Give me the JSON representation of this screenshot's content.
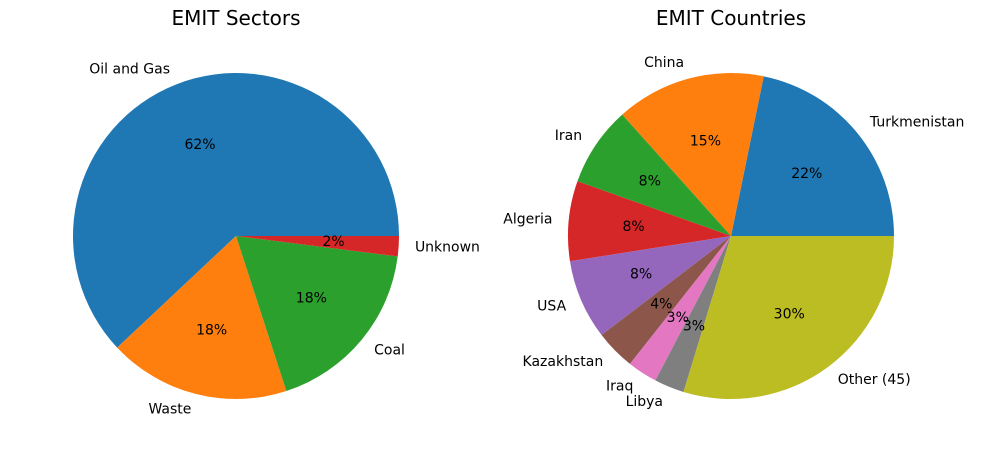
{
  "chart_data": [
    {
      "type": "pie",
      "title": "EMIT Sectors",
      "categories": [
        "Oil and Gas",
        "Waste",
        "Coal",
        "Unknown"
      ],
      "values": [
        62,
        18,
        18,
        2
      ],
      "percent_labels": [
        "62%",
        "18%",
        "18%",
        "2%"
      ],
      "colors": [
        "#1f77b4",
        "#ff7f0e",
        "#2ca02c",
        "#d62728"
      ],
      "start_angle_deg": 0,
      "direction": "counterclockwise"
    },
    {
      "type": "pie",
      "title": "EMIT Countries",
      "categories": [
        "Turkmenistan",
        "China",
        "Iran",
        "Algeria",
        "USA",
        "Kazakhstan",
        "Iraq",
        "Libya",
        "Other (45)"
      ],
      "values": [
        22,
        15,
        8,
        8,
        8,
        4,
        3,
        3,
        30
      ],
      "percent_labels": [
        "22%",
        "15%",
        "8%",
        "8%",
        "8%",
        "4%",
        "3%",
        "3%",
        "30%"
      ],
      "colors": [
        "#1f77b4",
        "#ff7f0e",
        "#2ca02c",
        "#d62728",
        "#9467bd",
        "#8c564b",
        "#e377c2",
        "#7f7f7f",
        "#bcbd22"
      ],
      "start_angle_deg": 0,
      "direction": "counterclockwise"
    }
  ]
}
